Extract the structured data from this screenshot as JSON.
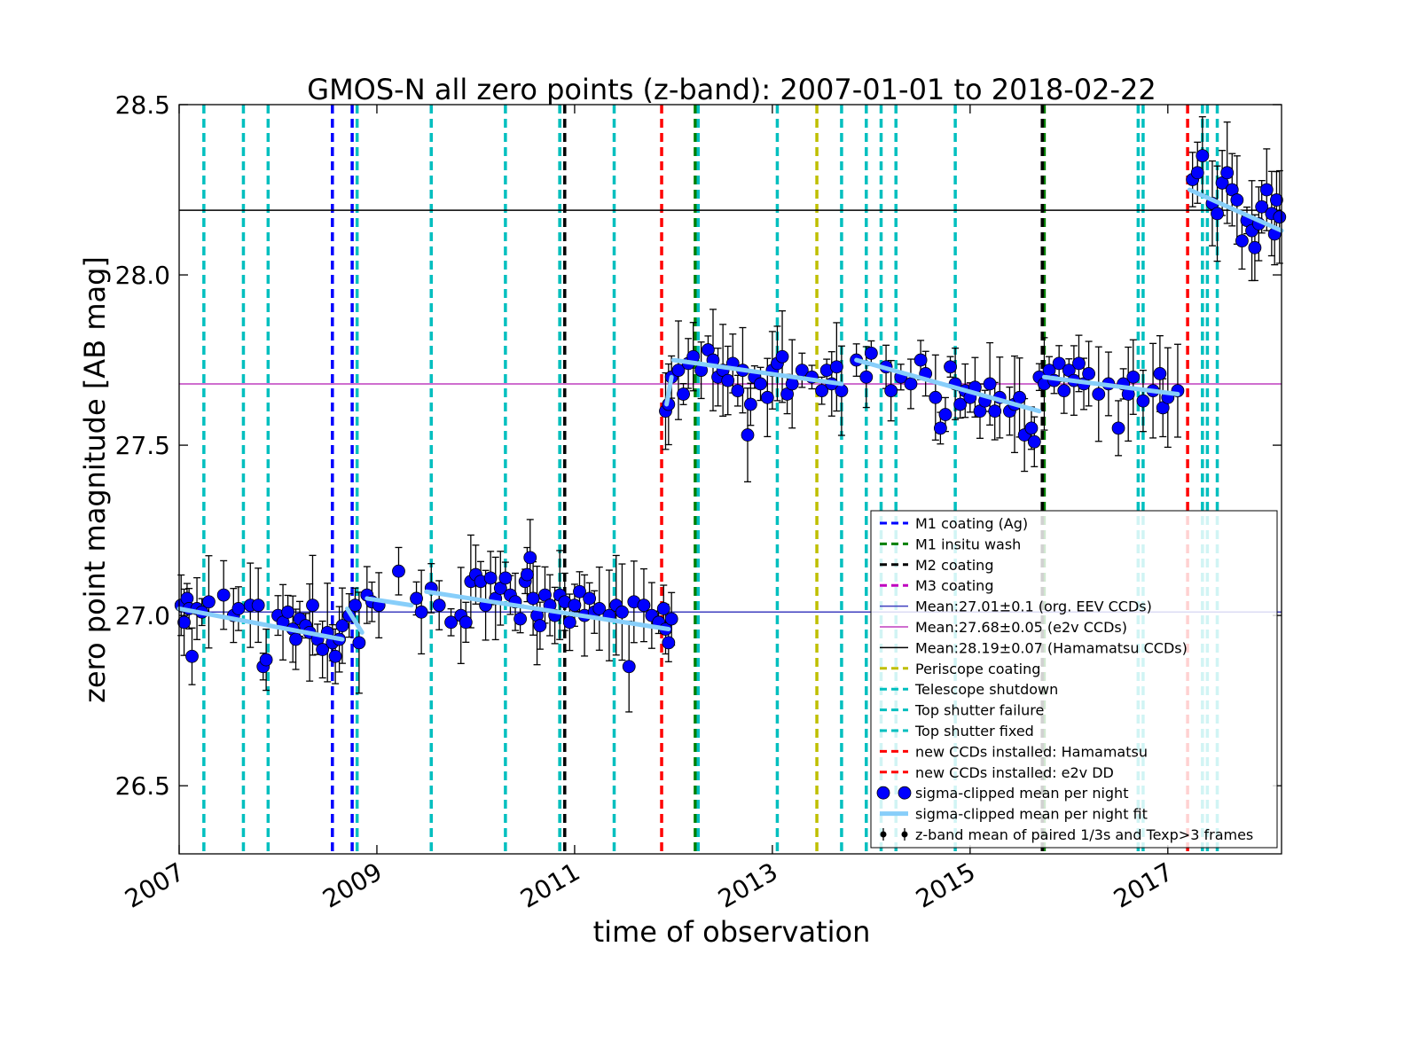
{
  "chart_data": {
    "type": "scatter",
    "title": "GMOS-N all zero points (z-band): 2007-01-01 to 2018-02-22",
    "xlabel": "time of observation",
    "ylabel": "zero point magnitude [AB mag]",
    "xlim": [
      2007.0,
      2018.15
    ],
    "ylim": [
      26.3,
      28.5
    ],
    "x_ticks": [
      2007,
      2009,
      2011,
      2013,
      2015,
      2017
    ],
    "x_tick_labels": [
      "2007",
      "2009",
      "2011",
      "2013",
      "2015",
      "2017"
    ],
    "y_ticks": [
      26.5,
      27.0,
      27.5,
      28.0,
      28.5
    ],
    "y_tick_labels": [
      "26.5",
      "27.0",
      "27.5",
      "28.0",
      "28.5"
    ],
    "grid": false,
    "legend_position": "lower-right",
    "means": [
      {
        "label": "Mean:27.01±0.1 (org. EEV CCDs)",
        "value": 27.01,
        "color": "#3f3fbf"
      },
      {
        "label": "Mean:27.68±0.05 (e2v CCDs)",
        "value": 27.68,
        "color": "#bf3fbf"
      },
      {
        "label": "Mean:28.19±0.07 (Hamamatsu CCDs)",
        "value": 28.19,
        "color": "#000000"
      }
    ],
    "events": [
      {
        "label": "M1 coating (Ag)",
        "color": "#0000ff",
        "dates": [
          2008.55,
          2008.75
        ]
      },
      {
        "label": "M1 insitu wash",
        "color": "#008000",
        "dates": [
          2010.85,
          2012.22,
          2015.75
        ]
      },
      {
        "label": "M2 coating",
        "color": "#000000",
        "dates": [
          2010.9,
          2012.25,
          2015.73
        ]
      },
      {
        "label": "M3 coating",
        "color": "#bf00bf",
        "dates": [
          2009.55
        ]
      },
      {
        "label": "Periscope coating",
        "color": "#bfbf00",
        "dates": [
          2013.45
        ]
      },
      {
        "label": "Telescope shutdown",
        "color": "#00bfbf",
        "dates": [
          2007.25,
          2007.65,
          2007.9,
          2008.8,
          2009.55,
          2010.3,
          2010.85,
          2011.4,
          2012.25,
          2013.05,
          2013.7,
          2013.95,
          2014.1
        ]
      },
      {
        "label": "Top shutter failure",
        "color": "#00bfbf",
        "dates": [
          2014.25,
          2014.85,
          2016.75,
          2017.35,
          2017.5
        ]
      },
      {
        "label": "Top shutter fixed",
        "color": "#00bfbf",
        "dates": [
          2016.7,
          2017.4
        ]
      },
      {
        "label": "new CCDs installed: Hamamatsu",
        "color": "#ff0000",
        "dates": [
          2017.2
        ]
      },
      {
        "label": "new CCDs installed: e2v DD",
        "color": "#ff0000",
        "dates": [
          2011.88
        ]
      }
    ],
    "series": [
      {
        "name": "sigma-clipped mean per night",
        "color": "#0000ff",
        "points": [
          [
            2007.02,
            27.03
          ],
          [
            2007.05,
            26.98
          ],
          [
            2007.08,
            27.05
          ],
          [
            2007.1,
            27.02
          ],
          [
            2007.13,
            26.88
          ],
          [
            2007.18,
            27.02
          ],
          [
            2007.23,
            27.01
          ],
          [
            2007.3,
            27.04
          ],
          [
            2007.45,
            27.06
          ],
          [
            2007.55,
            27.0
          ],
          [
            2007.6,
            27.02
          ],
          [
            2007.72,
            27.03
          ],
          [
            2007.8,
            27.03
          ],
          [
            2007.85,
            26.85
          ],
          [
            2007.88,
            26.87
          ],
          [
            2008.0,
            27.0
          ],
          [
            2008.05,
            26.98
          ],
          [
            2008.1,
            27.01
          ],
          [
            2008.15,
            26.96
          ],
          [
            2008.18,
            26.93
          ],
          [
            2008.22,
            26.99
          ],
          [
            2008.28,
            26.97
          ],
          [
            2008.32,
            26.95
          ],
          [
            2008.35,
            27.03
          ],
          [
            2008.4,
            26.93
          ],
          [
            2008.45,
            26.9
          ],
          [
            2008.5,
            26.95
          ],
          [
            2008.55,
            26.92
          ],
          [
            2008.58,
            26.88
          ],
          [
            2008.62,
            26.93
          ],
          [
            2008.65,
            26.97
          ],
          [
            2008.72,
            27.0
          ],
          [
            2008.78,
            27.03
          ],
          [
            2008.82,
            26.92
          ],
          [
            2008.9,
            27.06
          ],
          [
            2008.95,
            27.04
          ],
          [
            2009.02,
            27.03
          ],
          [
            2009.22,
            27.13
          ],
          [
            2009.4,
            27.05
          ],
          [
            2009.45,
            27.01
          ],
          [
            2009.55,
            27.08
          ],
          [
            2009.63,
            27.03
          ],
          [
            2009.75,
            26.98
          ],
          [
            2009.85,
            27.0
          ],
          [
            2009.9,
            26.98
          ],
          [
            2009.95,
            27.1
          ],
          [
            2010.0,
            27.12
          ],
          [
            2010.05,
            27.1
          ],
          [
            2010.1,
            27.03
          ],
          [
            2010.15,
            27.11
          ],
          [
            2010.2,
            27.05
          ],
          [
            2010.25,
            27.08
          ],
          [
            2010.3,
            27.11
          ],
          [
            2010.35,
            27.06
          ],
          [
            2010.4,
            27.04
          ],
          [
            2010.45,
            26.99
          ],
          [
            2010.5,
            27.1
          ],
          [
            2010.52,
            27.12
          ],
          [
            2010.55,
            27.17
          ],
          [
            2010.58,
            27.05
          ],
          [
            2010.62,
            27.0
          ],
          [
            2010.65,
            26.97
          ],
          [
            2010.7,
            27.06
          ],
          [
            2010.75,
            27.03
          ],
          [
            2010.8,
            27.0
          ],
          [
            2010.85,
            27.06
          ],
          [
            2010.9,
            27.04
          ],
          [
            2010.95,
            26.98
          ],
          [
            2011.0,
            27.03
          ],
          [
            2011.05,
            27.07
          ],
          [
            2011.1,
            27.0
          ],
          [
            2011.15,
            27.05
          ],
          [
            2011.2,
            27.01
          ],
          [
            2011.25,
            27.02
          ],
          [
            2011.35,
            27.0
          ],
          [
            2011.42,
            27.03
          ],
          [
            2011.48,
            27.01
          ],
          [
            2011.55,
            26.85
          ],
          [
            2011.6,
            27.04
          ],
          [
            2011.7,
            27.03
          ],
          [
            2011.78,
            27.0
          ],
          [
            2011.85,
            26.98
          ],
          [
            2011.9,
            27.02
          ],
          [
            2011.92,
            26.96
          ],
          [
            2011.95,
            26.92
          ],
          [
            2011.98,
            26.99
          ]
        ]
      },
      {
        "name": "sigma-clipped mean per night",
        "color": "#0000ff",
        "points": [
          [
            2011.92,
            27.6
          ],
          [
            2011.95,
            27.62
          ],
          [
            2011.98,
            27.7
          ],
          [
            2012.05,
            27.72
          ],
          [
            2012.1,
            27.65
          ],
          [
            2012.15,
            27.74
          ],
          [
            2012.2,
            27.76
          ],
          [
            2012.28,
            27.72
          ],
          [
            2012.35,
            27.78
          ],
          [
            2012.4,
            27.75
          ],
          [
            2012.45,
            27.7
          ],
          [
            2012.5,
            27.72
          ],
          [
            2012.55,
            27.69
          ],
          [
            2012.6,
            27.74
          ],
          [
            2012.65,
            27.66
          ],
          [
            2012.7,
            27.72
          ],
          [
            2012.75,
            27.53
          ],
          [
            2012.78,
            27.62
          ],
          [
            2012.82,
            27.7
          ],
          [
            2012.88,
            27.68
          ],
          [
            2012.95,
            27.64
          ],
          [
            2013.0,
            27.72
          ],
          [
            2013.05,
            27.74
          ],
          [
            2013.1,
            27.76
          ],
          [
            2013.15,
            27.65
          ],
          [
            2013.2,
            27.68
          ],
          [
            2013.3,
            27.72
          ],
          [
            2013.4,
            27.7
          ],
          [
            2013.5,
            27.66
          ],
          [
            2013.55,
            27.72
          ],
          [
            2013.6,
            27.68
          ],
          [
            2013.65,
            27.73
          ],
          [
            2013.7,
            27.66
          ],
          [
            2013.85,
            27.75
          ],
          [
            2013.95,
            27.7
          ],
          [
            2014.0,
            27.77
          ],
          [
            2014.15,
            27.73
          ],
          [
            2014.2,
            27.66
          ],
          [
            2014.3,
            27.7
          ],
          [
            2014.4,
            27.68
          ],
          [
            2014.5,
            27.75
          ],
          [
            2014.55,
            27.71
          ],
          [
            2014.65,
            27.64
          ],
          [
            2014.7,
            27.55
          ],
          [
            2014.75,
            27.59
          ],
          [
            2014.8,
            27.73
          ],
          [
            2014.85,
            27.68
          ],
          [
            2014.9,
            27.62
          ],
          [
            2014.95,
            27.66
          ],
          [
            2015.0,
            27.64
          ],
          [
            2015.05,
            27.67
          ],
          [
            2015.1,
            27.6
          ],
          [
            2015.15,
            27.63
          ],
          [
            2015.2,
            27.68
          ],
          [
            2015.25,
            27.6
          ],
          [
            2015.3,
            27.64
          ],
          [
            2015.4,
            27.6
          ],
          [
            2015.45,
            27.62
          ],
          [
            2015.5,
            27.64
          ],
          [
            2015.55,
            27.53
          ],
          [
            2015.62,
            27.55
          ],
          [
            2015.65,
            27.51
          ],
          [
            2015.7,
            27.7
          ],
          [
            2015.75,
            27.68
          ],
          [
            2015.8,
            27.72
          ],
          [
            2015.85,
            27.69
          ],
          [
            2015.9,
            27.74
          ],
          [
            2015.95,
            27.66
          ],
          [
            2016.0,
            27.72
          ],
          [
            2016.05,
            27.69
          ],
          [
            2016.1,
            27.74
          ],
          [
            2016.15,
            27.68
          ],
          [
            2016.2,
            27.71
          ],
          [
            2016.3,
            27.65
          ],
          [
            2016.4,
            27.68
          ],
          [
            2016.5,
            27.55
          ],
          [
            2016.55,
            27.68
          ],
          [
            2016.6,
            27.65
          ],
          [
            2016.65,
            27.7
          ],
          [
            2016.75,
            27.63
          ],
          [
            2016.85,
            27.66
          ],
          [
            2016.92,
            27.71
          ],
          [
            2016.95,
            27.61
          ],
          [
            2017.0,
            27.64
          ],
          [
            2017.1,
            27.66
          ]
        ]
      },
      {
        "name": "sigma-clipped mean per night",
        "color": "#0000ff",
        "points": [
          [
            2017.25,
            28.28
          ],
          [
            2017.3,
            28.3
          ],
          [
            2017.35,
            28.35
          ],
          [
            2017.45,
            28.21
          ],
          [
            2017.5,
            28.18
          ],
          [
            2017.55,
            28.27
          ],
          [
            2017.6,
            28.3
          ],
          [
            2017.65,
            28.25
          ],
          [
            2017.7,
            28.22
          ],
          [
            2017.75,
            28.1
          ],
          [
            2017.8,
            28.16
          ],
          [
            2017.85,
            28.13
          ],
          [
            2017.88,
            28.08
          ],
          [
            2017.92,
            28.15
          ],
          [
            2017.95,
            28.2
          ],
          [
            2018.0,
            28.25
          ],
          [
            2018.05,
            28.18
          ],
          [
            2018.08,
            28.12
          ],
          [
            2018.1,
            28.22
          ],
          [
            2018.13,
            28.17
          ]
        ]
      }
    ],
    "fit_segments": [
      {
        "x": [
          2007.0,
          2008.65
        ],
        "y": [
          27.02,
          26.93
        ]
      },
      {
        "x": [
          2008.7,
          2008.85
        ],
        "y": [
          27.02,
          26.95
        ]
      },
      {
        "x": [
          2008.9,
          2009.35
        ],
        "y": [
          27.05,
          27.03
        ]
      },
      {
        "x": [
          2009.5,
          2011.95
        ],
        "y": [
          27.07,
          26.96
        ]
      },
      {
        "x": [
          2011.93,
          2011.98
        ],
        "y": [
          27.62,
          27.7
        ]
      },
      {
        "x": [
          2012.0,
          2013.7
        ],
        "y": [
          27.75,
          27.68
        ]
      },
      {
        "x": [
          2013.85,
          2015.7
        ],
        "y": [
          27.75,
          27.6
        ]
      },
      {
        "x": [
          2015.75,
          2017.1
        ],
        "y": [
          27.7,
          27.65
        ]
      },
      {
        "x": [
          2017.22,
          2018.15
        ],
        "y": [
          28.25,
          28.13
        ]
      }
    ],
    "legend": [
      {
        "label": "M1 coating (Ag)",
        "kind": "dash",
        "color": "#0000ff"
      },
      {
        "label": "M1 insitu wash",
        "kind": "dash",
        "color": "#008000"
      },
      {
        "label": "M2 coating",
        "kind": "dash",
        "color": "#000000"
      },
      {
        "label": "M3 coating",
        "kind": "dash",
        "color": "#bf00bf"
      },
      {
        "label": "Mean:27.01±0.1 (org. EEV CCDs)",
        "kind": "line",
        "color": "#3f3fbf"
      },
      {
        "label": "Mean:27.68±0.05 (e2v CCDs)",
        "kind": "line",
        "color": "#bf3fbf"
      },
      {
        "label": "Mean:28.19±0.07 (Hamamatsu CCDs)",
        "kind": "line",
        "color": "#000000"
      },
      {
        "label": "Periscope coating",
        "kind": "dash",
        "color": "#bfbf00"
      },
      {
        "label": "Telescope shutdown",
        "kind": "dash",
        "color": "#00bfbf"
      },
      {
        "label": "Top shutter failure",
        "kind": "dash",
        "color": "#00bfbf"
      },
      {
        "label": "Top shutter fixed",
        "kind": "dash",
        "color": "#00bfbf"
      },
      {
        "label": "new CCDs installed: Hamamatsu",
        "kind": "dash",
        "color": "#ff0000"
      },
      {
        "label": "new CCDs installed: e2v DD",
        "kind": "dash",
        "color": "#ff0000"
      },
      {
        "label": "sigma-clipped mean per night",
        "kind": "dots",
        "color": "#0000ff"
      },
      {
        "label": "sigma-clipped mean per night fit",
        "kind": "thick",
        "color": "#87cefa"
      },
      {
        "label": "z-band mean of paired 1/3s and Texp>3 frames",
        "kind": "errbar",
        "color": "#000000"
      }
    ]
  }
}
